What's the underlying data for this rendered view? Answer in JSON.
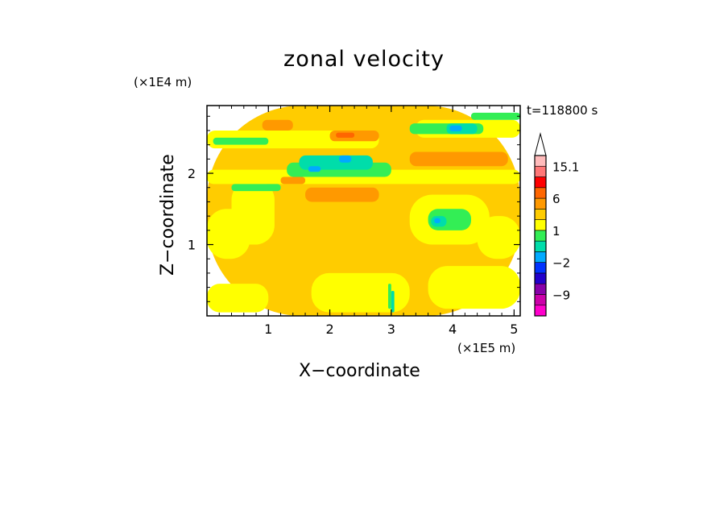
{
  "chart_data": {
    "type": "heatmap",
    "title": "zonal velocity",
    "xlabel": "X−coordinate",
    "ylabel": "Z−coordinate",
    "x_unit_label": "(×1E5 m)",
    "y_unit_label": "(×1E4 m)",
    "time_label": "t=118800 s",
    "xlim": [
      0,
      5.1
    ],
    "ylim": [
      0,
      2.95
    ],
    "x_ticks": [
      1,
      2,
      3,
      4,
      5
    ],
    "y_ticks": [
      1,
      2
    ],
    "x_tick_labels": [
      "1",
      "2",
      "3",
      "4",
      "5"
    ],
    "y_tick_labels": [
      "1",
      "2"
    ],
    "colorbar": {
      "levels": [
        -14,
        -11,
        -9,
        -6,
        -4,
        -2,
        -1,
        0,
        1,
        2,
        4,
        6,
        9,
        12,
        15.1
      ],
      "colors": [
        "#ff00cc",
        "#cc00aa",
        "#8800aa",
        "#2200cc",
        "#0033ff",
        "#00aaff",
        "#00ddaa",
        "#33ee55",
        "#ffff00",
        "#ffcc00",
        "#ff9900",
        "#ff6600",
        "#ff0000",
        "#ff7777",
        "#ffbbbb",
        "#ffffff"
      ],
      "tick_labels": [
        {
          "value": 15.1,
          "label": "15.1"
        },
        {
          "value": 6,
          "label": "6"
        },
        {
          "value": 1,
          "label": "1"
        },
        {
          "value": -2,
          "label": "−2"
        },
        {
          "value": -9,
          "label": "−9"
        }
      ]
    },
    "field_regions": [
      {
        "x0": 0,
        "x1": 5.1,
        "z0": 0,
        "z1": 2.95,
        "v": 1.5
      },
      {
        "x0": 0,
        "x1": 1.0,
        "z0": 0.05,
        "z1": 0.45,
        "v": 0.5
      },
      {
        "x0": 1.7,
        "x1": 3.3,
        "z0": 0.05,
        "z1": 0.6,
        "v": 0.5
      },
      {
        "x0": 3.6,
        "x1": 5.1,
        "z0": 0.1,
        "z1": 0.7,
        "v": 0.5
      },
      {
        "x0": 0,
        "x1": 0.7,
        "z0": 0.8,
        "z1": 1.5,
        "v": 0.5
      },
      {
        "x0": 0.4,
        "x1": 1.1,
        "z0": 1.0,
        "z1": 1.9,
        "v": 0.5
      },
      {
        "x0": 3.3,
        "x1": 4.6,
        "z0": 1.0,
        "z1": 1.7,
        "v": 0.5
      },
      {
        "x0": 4.4,
        "x1": 5.1,
        "z0": 0.8,
        "z1": 1.4,
        "v": 0.5
      },
      {
        "x0": 0,
        "x1": 5.1,
        "z0": 1.85,
        "z1": 2.05,
        "v": 0.5
      },
      {
        "x0": 0,
        "x1": 2.8,
        "z0": 2.35,
        "z1": 2.6,
        "v": 0.5
      },
      {
        "x0": 3.4,
        "x1": 5.1,
        "z0": 2.5,
        "z1": 2.75,
        "v": 0.5
      },
      {
        "x0": 0.1,
        "x1": 1.0,
        "z0": 2.4,
        "z1": 2.5,
        "v": -0.5
      },
      {
        "x0": 0.4,
        "x1": 1.2,
        "z0": 1.75,
        "z1": 1.85,
        "v": -0.5
      },
      {
        "x0": 1.3,
        "x1": 3.0,
        "z0": 1.95,
        "z1": 2.15,
        "v": -0.5
      },
      {
        "x0": 4.3,
        "x1": 5.1,
        "z0": 2.75,
        "z1": 2.85,
        "v": -0.5
      },
      {
        "x0": 3.6,
        "x1": 4.3,
        "z0": 1.2,
        "z1": 1.5,
        "v": -0.5
      },
      {
        "x0": 3.3,
        "x1": 4.5,
        "z0": 2.55,
        "z1": 2.7,
        "v": -0.5
      },
      {
        "x0": 1.5,
        "x1": 2.7,
        "z0": 2.05,
        "z1": 2.25,
        "v": -1.5
      },
      {
        "x0": 3.9,
        "x1": 4.4,
        "z0": 2.55,
        "z1": 2.7,
        "v": -1.5
      },
      {
        "x0": 3.65,
        "x1": 3.9,
        "z0": 1.25,
        "z1": 1.4,
        "v": -1.5
      },
      {
        "x0": 1.65,
        "x1": 1.85,
        "z0": 2.02,
        "z1": 2.1,
        "v": -3
      },
      {
        "x0": 2.15,
        "x1": 2.35,
        "z0": 2.15,
        "z1": 2.25,
        "v": -3
      },
      {
        "x0": 3.95,
        "x1": 4.15,
        "z0": 2.59,
        "z1": 2.67,
        "v": -3
      },
      {
        "x0": 3.7,
        "x1": 3.8,
        "z0": 1.3,
        "z1": 1.37,
        "v": -3
      },
      {
        "x0": 0.9,
        "x1": 1.4,
        "z0": 2.6,
        "z1": 2.75,
        "v": 3
      },
      {
        "x0": 2.0,
        "x1": 2.8,
        "z0": 2.45,
        "z1": 2.6,
        "v": 3
      },
      {
        "x0": 3.3,
        "x1": 4.9,
        "z0": 2.1,
        "z1": 2.3,
        "v": 3
      },
      {
        "x0": 1.6,
        "x1": 2.8,
        "z0": 1.6,
        "z1": 1.8,
        "v": 3
      },
      {
        "x0": 1.2,
        "x1": 1.6,
        "z0": 1.85,
        "z1": 1.95,
        "v": 3
      },
      {
        "x0": 2.1,
        "x1": 2.4,
        "z0": 2.5,
        "z1": 2.57,
        "v": 5
      },
      {
        "x0": 3.0,
        "x1": 3.05,
        "z0": 0.05,
        "z1": 0.35,
        "v": -1.5
      },
      {
        "x0": 2.95,
        "x1": 3.0,
        "z0": 0.1,
        "z1": 0.45,
        "v": -0.5
      }
    ]
  }
}
